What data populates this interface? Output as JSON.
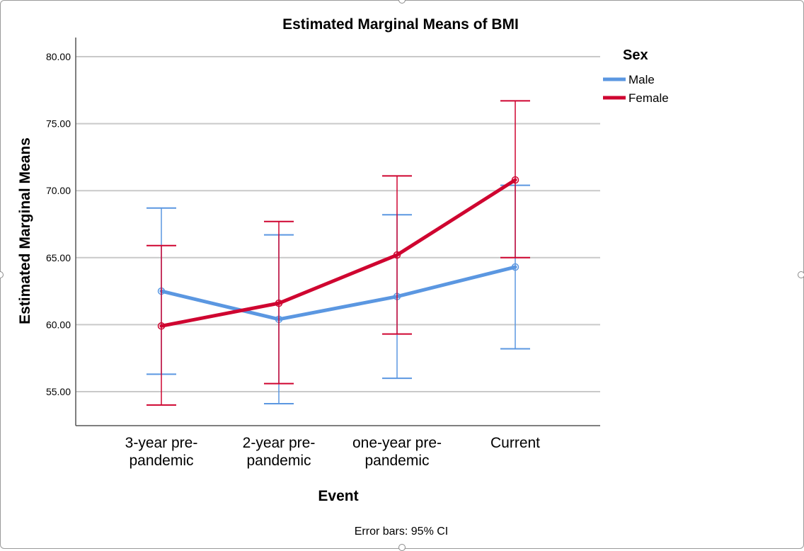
{
  "chart_data": {
    "type": "line",
    "title": "Estimated Marginal Means of BMI",
    "xlabel": "Event",
    "ylabel": "Estimated Marginal Means",
    "categories": [
      [
        "3-year pre-",
        "pandemic"
      ],
      [
        "2-year pre-",
        "pandemic"
      ],
      [
        "one-year pre-",
        "pandemic"
      ],
      [
        "Current"
      ]
    ],
    "y_ticks": [
      "55.00",
      "60.00",
      "65.00",
      "70.00",
      "75.00",
      "80.00"
    ],
    "ylim": [
      52.5,
      81.5
    ],
    "grid": true,
    "legend": {
      "title": "Sex",
      "position": "top-right"
    },
    "series": [
      {
        "name": "Male",
        "color": "#5b97e1",
        "values": [
          62.5,
          60.4,
          62.1,
          64.3
        ],
        "ci_low": [
          56.3,
          54.1,
          56.0,
          58.2
        ],
        "ci_high": [
          68.7,
          66.7,
          68.2,
          70.4
        ]
      },
      {
        "name": "Female",
        "color": "#cf0530",
        "values": [
          59.9,
          61.6,
          65.2,
          70.8
        ],
        "ci_low": [
          54.0,
          55.6,
          59.3,
          65.0
        ],
        "ci_high": [
          65.9,
          67.7,
          71.1,
          76.7
        ]
      }
    ],
    "footnote": "Error bars: 95% CI"
  }
}
